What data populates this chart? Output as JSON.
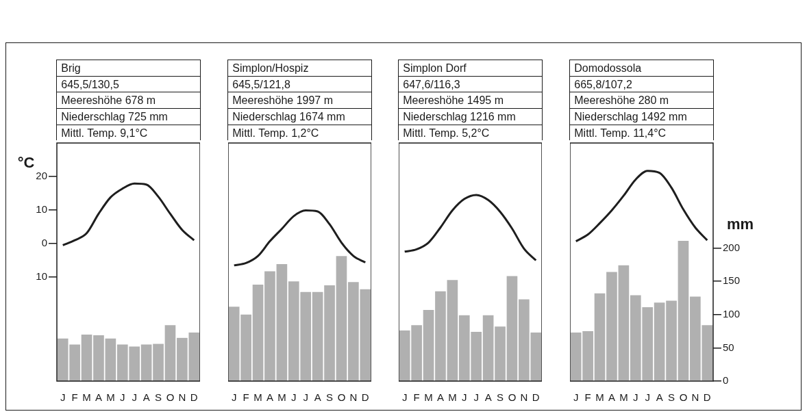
{
  "chart_data": [
    {
      "type": "bar",
      "title": "Brig",
      "subtitle": "645,5/130,5",
      "annotations": [
        "Meereshöhe 678 m",
        "Niederschlag 725 mm",
        "Mittl. Temp. 9,1°C"
      ],
      "ylabel": "°C",
      "categories": [
        "J",
        "F",
        "M",
        "A",
        "M",
        "J",
        "J",
        "A",
        "S",
        "O",
        "N",
        "D"
      ],
      "series": [
        {
          "type": "line",
          "color": "#1e1e1e",
          "values": [
            -0.5,
            1.0,
            3.1,
            8.9,
            13.8,
            16.4,
            17.9,
            17.6,
            14.0,
            8.9,
            4.1,
            1.0
          ]
        },
        {
          "axis": "y2",
          "color": "#b0b0b0",
          "values": [
            64,
            55,
            70,
            69,
            64,
            55,
            52,
            55,
            56,
            84,
            65,
            73
          ]
        }
      ],
      "ylim": [
        -41,
        30
      ],
      "yticks": [
        {
          "value": -10,
          "label": "10"
        },
        0,
        10,
        20
      ],
      "y2lim": [
        0,
        358
      ],
      "tick_labels": "xy",
      "marker": "none",
      "line_style": "solid"
    },
    {
      "type": "bar",
      "title": "Simplon/Hospiz",
      "subtitle": "645,5/121,8",
      "annotations": [
        "Meereshöhe 1997 m",
        "Niederschlag 1674 mm",
        "Mittl. Temp. 1,2°C"
      ],
      "categories": [
        "J",
        "F",
        "M",
        "A",
        "M",
        "J",
        "J",
        "A",
        "S",
        "O",
        "N",
        "D"
      ],
      "series": [
        {
          "type": "line",
          "color": "#1e1e1e",
          "values": [
            -6.5,
            -5.8,
            -3.7,
            0.7,
            4.4,
            8.2,
            9.9,
            9.6,
            5.8,
            0.3,
            -3.7,
            -5.6
          ]
        },
        {
          "axis": "y2",
          "color": "#b0b0b0",
          "values": [
            112,
            100,
            145,
            165,
            176,
            150,
            134,
            134,
            144,
            188,
            149,
            138
          ]
        }
      ],
      "ylim": [
        -41,
        30
      ],
      "y2lim": [
        0,
        358
      ],
      "tick_labels": "x",
      "marker": "none",
      "line_style": "solid"
    },
    {
      "type": "bar",
      "title": "Simplon Dorf",
      "subtitle": "647,6/116,3",
      "annotations": [
        "Meereshöhe 1495 m",
        "Niederschlag 1216 mm",
        "Mittl. Temp. 5,2°C"
      ],
      "categories": [
        "J",
        "F",
        "M",
        "A",
        "M",
        "J",
        "J",
        "A",
        "S",
        "O",
        "N",
        "D"
      ],
      "series": [
        {
          "type": "line",
          "color": "#1e1e1e",
          "values": [
            -2.4,
            -1.7,
            0.3,
            4.8,
            9.9,
            13.3,
            14.5,
            13.0,
            9.5,
            4.5,
            -1.5,
            -5.0
          ]
        },
        {
          "axis": "y2",
          "color": "#b0b0b0",
          "values": [
            76,
            84,
            107,
            135,
            152,
            99,
            74,
            99,
            82,
            158,
            123,
            73
          ]
        }
      ],
      "ylim": [
        -41,
        30
      ],
      "y2lim": [
        0,
        358
      ],
      "tick_labels": "x",
      "marker": "none",
      "line_style": "solid"
    },
    {
      "type": "bar",
      "title": "Domodossola",
      "subtitle": "665,8/107,2",
      "annotations": [
        "Meereshöhe 280 m",
        "Niederschlag 1492 mm",
        "Mittl. Temp. 11,4°C"
      ],
      "y2label": "mm",
      "categories": [
        "J",
        "F",
        "M",
        "A",
        "M",
        "J",
        "J",
        "A",
        "S",
        "O",
        "N",
        "D"
      ],
      "series": [
        {
          "type": "line",
          "color": "#1e1e1e",
          "values": [
            0.7,
            2.7,
            6.1,
            9.9,
            14.3,
            19.1,
            21.7,
            21.1,
            16.7,
            10.2,
            4.8,
            1.0
          ]
        },
        {
          "axis": "y2",
          "color": "#b0b0b0",
          "values": [
            73,
            75,
            132,
            164,
            174,
            129,
            111,
            118,
            121,
            211,
            127,
            84
          ]
        }
      ],
      "ylim": [
        -41,
        30
      ],
      "y2lim": [
        0,
        358
      ],
      "y2ticks": [
        0,
        50,
        100,
        150,
        200
      ],
      "tick_labels": "xy2",
      "marker": "none",
      "line_style": "solid"
    }
  ]
}
